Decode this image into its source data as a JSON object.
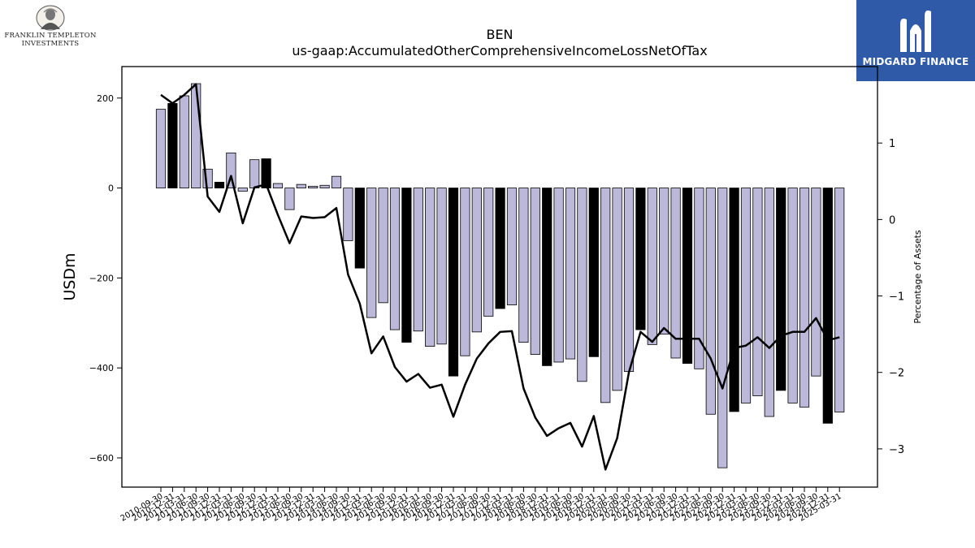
{
  "logos": {
    "left_line1": "FRANKLIN TEMPLETON",
    "left_line2": "INVESTMENTS",
    "right_name": "MIDGARD FINANCE",
    "left_icon": "portrait-medallion-icon",
    "right_icon": "midgard-m-icon"
  },
  "chart_data": {
    "type": "bar",
    "title": "BEN",
    "subtitle": "us-gaap:AccumulatedOtherComprehensiveIncomeLossNetOfTax",
    "ylabel": "USDm",
    "y2label": "Percentage of Assets",
    "ylim": [
      -665,
      270
    ],
    "y2lim": [
      -3.5,
      2.0
    ],
    "yticks": [
      -600,
      -400,
      -200,
      0,
      200
    ],
    "y2ticks": [
      -3,
      -2,
      -1,
      0,
      1
    ],
    "grid": false,
    "legend": "none",
    "colors": {
      "bar_default": "#bcb8da",
      "bar_highlight": "#000000",
      "line": "#000000"
    },
    "categories": [
      "2010-09-30",
      "2010-12-31",
      "2011-03-31",
      "2011-06-30",
      "2011-09-30",
      "2011-12-31",
      "2012-03-31",
      "2012-06-30",
      "2012-09-30",
      "2012-12-31",
      "2013-03-31",
      "2013-06-30",
      "2013-09-30",
      "2013-12-31",
      "2014-03-31",
      "2014-06-30",
      "2014-09-30",
      "2014-12-31",
      "2015-03-31",
      "2015-06-30",
      "2015-09-30",
      "2015-12-31",
      "2016-03-31",
      "2016-06-30",
      "2016-09-30",
      "2016-12-31",
      "2017-03-31",
      "2017-06-30",
      "2017-09-30",
      "2017-12-31",
      "2018-03-31",
      "2018-06-30",
      "2018-09-30",
      "2018-12-31",
      "2019-03-31",
      "2019-06-30",
      "2019-09-30",
      "2019-12-31",
      "2020-03-31",
      "2020-06-30",
      "2020-09-30",
      "2020-12-31",
      "2021-03-31",
      "2021-06-30",
      "2021-09-30",
      "2021-12-31",
      "2022-03-31",
      "2022-06-30",
      "2022-09-30",
      "2022-12-31",
      "2023-03-31",
      "2023-06-30",
      "2023-09-30",
      "2023-12-31",
      "2024-03-31",
      "2024-06-30",
      "2024-09-30",
      "2024-12-31",
      "2025-03-31"
    ],
    "values": [
      175,
      188,
      205,
      232,
      42,
      13,
      78,
      -7,
      63,
      65,
      10,
      -48,
      8,
      4,
      6,
      26,
      -117,
      -178,
      -288,
      -255,
      -315,
      -343,
      -318,
      -352,
      -347,
      -418,
      -373,
      -320,
      -285,
      -268,
      -260,
      -343,
      -370,
      -395,
      -387,
      -380,
      -430,
      -375,
      -477,
      -450,
      -408,
      -315,
      -348,
      -325,
      -378,
      -390,
      -402,
      -503,
      -622,
      -497,
      -478,
      -462,
      -508,
      -450,
      -478,
      -487,
      -418,
      -523,
      -498
    ],
    "highlight": [
      false,
      true,
      false,
      false,
      false,
      true,
      false,
      false,
      false,
      true,
      false,
      false,
      false,
      false,
      false,
      false,
      false,
      true,
      false,
      false,
      false,
      true,
      false,
      false,
      false,
      true,
      false,
      false,
      false,
      true,
      false,
      false,
      false,
      true,
      false,
      false,
      false,
      true,
      false,
      false,
      false,
      true,
      false,
      false,
      false,
      true,
      false,
      false,
      false,
      true,
      false,
      false,
      false,
      true,
      false,
      false,
      false,
      true,
      false
    ],
    "pct_of_assets": [
      1.63,
      1.52,
      1.63,
      1.77,
      0.3,
      0.1,
      0.57,
      -0.05,
      0.42,
      0.46,
      0.06,
      -0.31,
      0.04,
      0.02,
      0.03,
      0.15,
      -0.72,
      -1.1,
      -1.75,
      -1.53,
      -1.93,
      -2.12,
      -2.02,
      -2.2,
      -2.16,
      -2.58,
      -2.16,
      -1.82,
      -1.62,
      -1.47,
      -1.46,
      -2.21,
      -2.59,
      -2.83,
      -2.73,
      -2.66,
      -2.97,
      -2.57,
      -3.27,
      -2.86,
      -2.0,
      -1.47,
      -1.6,
      -1.42,
      -1.56,
      -1.56,
      -1.56,
      -1.82,
      -2.21,
      -1.68,
      -1.65,
      -1.54,
      -1.68,
      -1.52,
      -1.47,
      -1.47,
      -1.29,
      -1.58,
      -1.54
    ]
  }
}
